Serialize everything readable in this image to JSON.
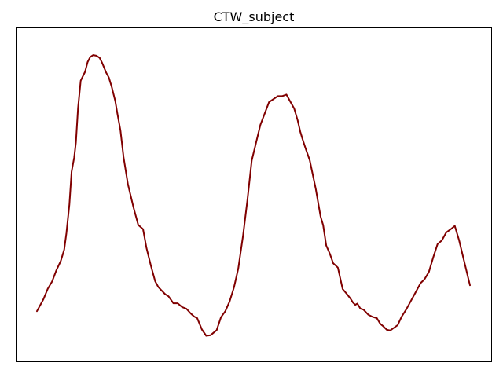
{
  "chart_data": {
    "type": "line",
    "title": "CTW_subject",
    "xlabel": "",
    "ylabel": "",
    "xlim": [
      0,
      100
    ],
    "ylim": [
      0,
      100
    ],
    "grid": false,
    "axes_ticks": false,
    "series": [
      {
        "color": "#800000",
        "x": [
          0,
          1.5,
          2.5,
          3.5,
          4.5,
          5.5,
          6.3,
          6.8,
          7.5,
          8.0,
          8.6,
          9.0,
          9.5,
          10.1,
          11.1,
          11.7,
          12.3,
          13.0,
          13.8,
          14.5,
          15.1,
          16.0,
          16.6,
          17.3,
          18.1,
          18.6,
          19.3,
          20.0,
          21.0,
          22.3,
          23.4,
          24.5,
          25.3,
          26.3,
          27.3,
          28.0,
          28.6,
          29.6,
          30.4,
          31.5,
          32.5,
          33.5,
          34.5,
          35.5,
          36.3,
          37.0,
          38.1,
          39.1,
          40.1,
          41.5,
          42.5,
          43.5,
          44.5,
          45.5,
          46.5,
          47.6,
          48.6,
          49.6,
          51.6,
          53.6,
          55.6,
          56.6,
          57.6,
          58.4,
          59.4,
          60.2,
          60.8,
          61.3,
          62.0,
          63.0,
          64.4,
          65.5,
          66.1,
          66.8,
          67.6,
          68.4,
          69.5,
          70.6,
          71.6,
          72.4,
          73.0,
          73.5,
          74.0,
          74.7,
          75.4,
          76.5,
          77.5,
          78.5,
          79.3,
          80.0,
          80.8,
          81.6,
          82.4,
          83.3,
          84.2,
          85.3,
          86.5,
          87.7,
          88.6,
          89.5,
          90.5,
          91.5,
          92.5,
          93.5,
          94.5,
          95.5,
          96.5,
          97.5,
          98.5,
          100
        ],
        "y": [
          11.4,
          15.2,
          18.5,
          20.8,
          24.4,
          27.3,
          30.9,
          36.1,
          45.2,
          55.6,
          60.1,
          64.9,
          75.8,
          84.4,
          87.2,
          90.3,
          91.9,
          92.5,
          92.3,
          91.6,
          89.9,
          86.9,
          85.4,
          82.3,
          77.9,
          73.8,
          68.6,
          60.2,
          51.7,
          44.2,
          38.7,
          37.4,
          31.4,
          25.9,
          20.9,
          19.1,
          18.2,
          16.8,
          16.1,
          13.9,
          13.9,
          12.7,
          12.2,
          10.7,
          9.7,
          9.2,
          5.6,
          3.6,
          3.8,
          5.4,
          9.5,
          11.4,
          14.5,
          18.9,
          24.9,
          35.4,
          46.6,
          59.1,
          70.4,
          77.6,
          79.5,
          79.5,
          80.0,
          78.0,
          75.6,
          71.9,
          68.3,
          66.0,
          63.1,
          59.2,
          50.1,
          41.4,
          38.6,
          32.2,
          29.7,
          26.6,
          25.2,
          18.4,
          16.8,
          15.4,
          14.1,
          13.4,
          13.8,
          12.2,
          11.9,
          10.3,
          9.6,
          9.2,
          7.4,
          6.6,
          5.5,
          5.3,
          6.1,
          7.0,
          9.6,
          12.0,
          15.0,
          18.0,
          20.3,
          21.5,
          23.8,
          28.4,
          32.6,
          33.8,
          36.3,
          37.3,
          38.4,
          33.8,
          28.1,
          19.6
        ]
      }
    ]
  }
}
